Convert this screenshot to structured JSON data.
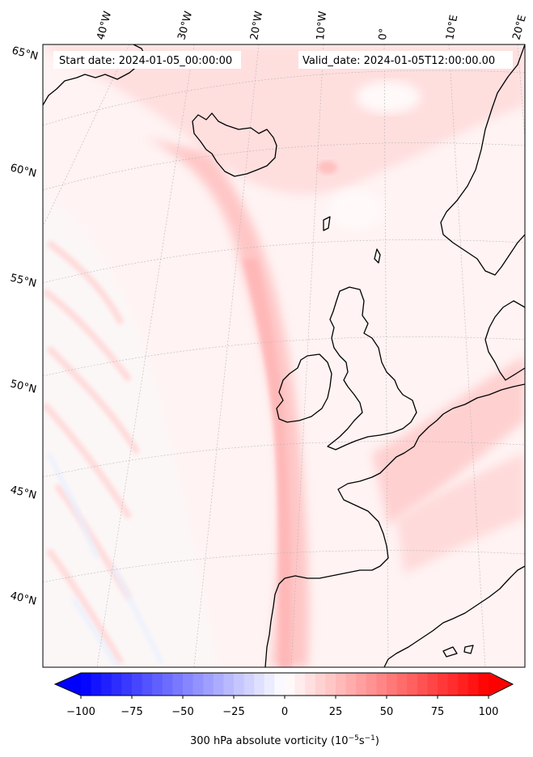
{
  "header": {
    "start_date": "Start date: 2024-01-05_00:00:00",
    "valid_date": "Valid_date: 2024-01-05T12:00:00.00"
  },
  "map": {
    "projection": "lambert-conformal",
    "extent_lon": [
      -45,
      20
    ],
    "extent_lat": [
      37,
      66
    ],
    "lon_labels": [
      "40°W",
      "30°W",
      "20°W",
      "10°W",
      "0°",
      "10°E",
      "20°E"
    ],
    "lat_labels": [
      "65°N",
      "60°N",
      "55°N",
      "50°N",
      "45°N",
      "40°N"
    ],
    "field_colors": {
      "background": "#fff0f0",
      "light": "#ffe0e0",
      "medium": "#ffcccc",
      "strong": "#ffb3b3",
      "weak_negative": "#eef3ff"
    },
    "coastline_color": "#000000"
  },
  "colorbar": {
    "ticks": [
      "−100",
      "−75",
      "−50",
      "−25",
      "0",
      "25",
      "50",
      "75",
      "100"
    ],
    "range": [
      -100,
      100
    ],
    "colormap": "bwr",
    "extend": "both",
    "label": "300 hPa absolute vorticity (10",
    "label_exp1": "−5",
    "label_mid": "s",
    "label_exp2": "−1",
    "label_end": ")"
  }
}
